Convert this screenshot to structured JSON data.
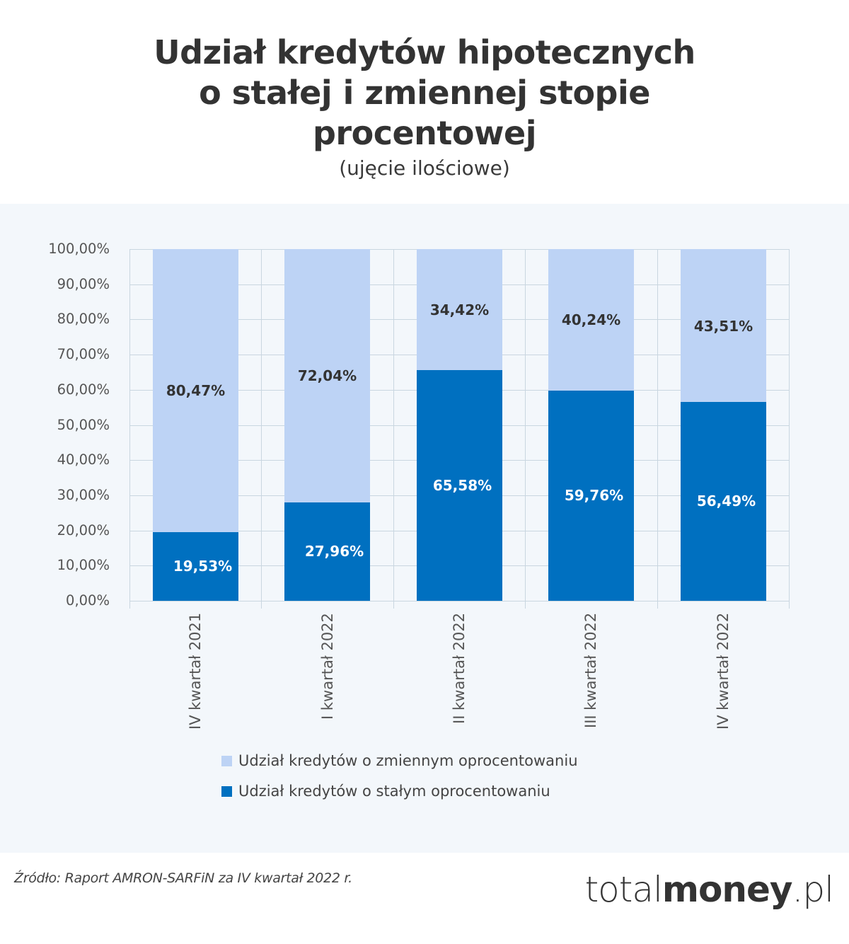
{
  "header": {
    "title_lines": [
      "Udział kredytów hipotecznych",
      "o stałej i zmiennej stopie",
      "procentowej"
    ],
    "subtitle": "(ujęcie ilościowe)"
  },
  "colors": {
    "variable": "#bdd3f5",
    "fixed": "#0070c0",
    "panel_bg": "#f3f7fb"
  },
  "chart_data": {
    "type": "bar",
    "stacked": true,
    "title": "Udział kredytów hipotecznych o stałej i zmiennej stopie procentowej",
    "subtitle": "(ujęcie ilościowe)",
    "categories": [
      "IV kwartał 2021",
      "I kwartał 2022",
      "II kwartał 2022",
      "III kwartał 2022",
      "IV kwartał 2022"
    ],
    "series": [
      {
        "name": "Udział kredytów o stałym oprocentowaniu",
        "color": "#0070c0",
        "values": [
          19.53,
          27.96,
          65.58,
          59.76,
          56.49
        ],
        "labels": [
          "19,53%",
          "27,96%",
          "65,58%",
          "59,76%",
          "56,49%"
        ]
      },
      {
        "name": "Udział kredytów o zmiennym oprocentowaniu",
        "color": "#bdd3f5",
        "values": [
          80.47,
          72.04,
          34.42,
          40.24,
          43.51
        ],
        "labels": [
          "80,47%",
          "72,04%",
          "34,42%",
          "40,24%",
          "43,51%"
        ]
      }
    ],
    "xlabel": "",
    "ylabel": "",
    "ylim": [
      0,
      100
    ],
    "yticks": [
      "0,00%",
      "10,00%",
      "20,00%",
      "30,00%",
      "40,00%",
      "50,00%",
      "60,00%",
      "70,00%",
      "80,00%",
      "90,00%",
      "100,00%"
    ],
    "grid": true,
    "legend_position": "bottom"
  },
  "legend": {
    "items": [
      {
        "label": "Udział kredytów o zmiennym oprocentowaniu",
        "color": "#bdd3f5"
      },
      {
        "label": "Udział kredytów o stałym oprocentowaniu",
        "color": "#0070c0"
      }
    ]
  },
  "footer": {
    "source": "Źródło: Raport AMRON-SARFiN za IV kwartał 2022 r.",
    "logo": {
      "part1": "total",
      "part2": "money",
      "part3": ".pl"
    }
  }
}
